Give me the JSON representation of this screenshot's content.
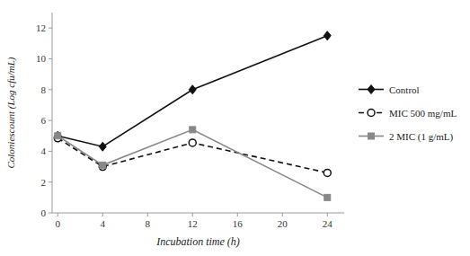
{
  "chart_data": {
    "type": "line",
    "x": [
      0,
      4,
      12,
      24
    ],
    "series": [
      {
        "name": "Control",
        "color": "#111111",
        "marker": "diamond",
        "line_style": "solid",
        "values": [
          5.0,
          4.3,
          8.0,
          11.5
        ]
      },
      {
        "name": "MIC 500 mg/mL",
        "color": "#111111",
        "marker": "circle",
        "line_style": "dashed",
        "values": [
          4.85,
          3.0,
          4.55,
          2.6
        ]
      },
      {
        "name": "2 MIC (1 g/mL)",
        "color": "#888888",
        "marker": "square",
        "line_style": "solid",
        "values": [
          5.0,
          3.1,
          5.4,
          1.0
        ]
      }
    ],
    "xlabel": "Incubation time (h)",
    "ylabel": "Coloniescount (Log cfu/mL)",
    "xlim": [
      -0.5,
      25.5
    ],
    "ylim": [
      0,
      13
    ],
    "xticks": [
      0,
      4,
      8,
      12,
      16,
      20,
      24
    ],
    "yticks": [
      0,
      2,
      4,
      6,
      8,
      10,
      12
    ],
    "grid": false,
    "legend": "right"
  }
}
